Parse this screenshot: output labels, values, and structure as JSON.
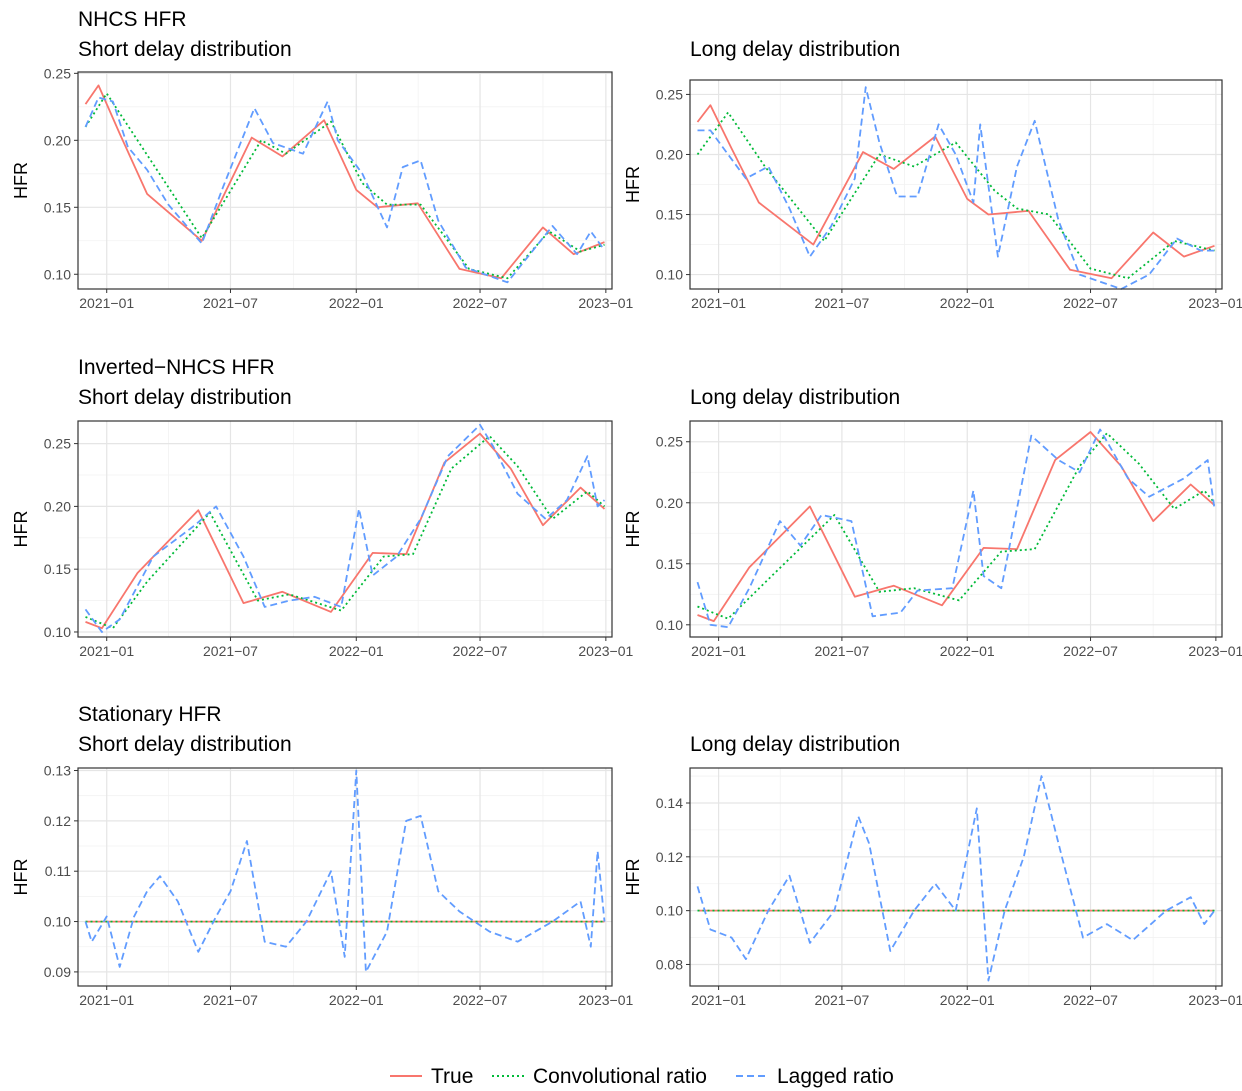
{
  "figure": {
    "row_titles": [
      "NHCS HFR",
      "Inverted−NHCS HFR",
      "Stationary HFR"
    ],
    "legend": {
      "items": [
        {
          "label": "True",
          "color": "#F8766D",
          "dash": "solid"
        },
        {
          "label": "Convolutional ratio",
          "color": "#00BA38",
          "dash": "dotted"
        },
        {
          "label": "Lagged ratio",
          "color": "#619CFF",
          "dash": "dashed"
        }
      ]
    }
  },
  "chart_data": [
    {
      "type": "line",
      "row_title": "NHCS HFR",
      "title": "Short delay distribution",
      "ylabel": "HFR",
      "xlim": [
        "2020-11-20",
        "2023-01-10"
      ],
      "ylim": [
        0.089,
        0.251
      ],
      "xticks": [
        "2021−01",
        "2021−07",
        "2022−01",
        "2022−07",
        "2023−01"
      ],
      "xtick_values": [
        "2021-01-01",
        "2021-07-01",
        "2022-01-01",
        "2022-07-01",
        "2023-01-01"
      ],
      "yticks": [
        "0.10",
        "0.15",
        "0.20",
        "0.25"
      ],
      "ytick_values": [
        0.1,
        0.15,
        0.2,
        0.25
      ],
      "series": [
        {
          "name": "True",
          "x": [
            "2020-12-01",
            "2020-12-20",
            "2021-01-20",
            "2021-03-01",
            "2021-05-20",
            "2021-08-01",
            "2021-09-15",
            "2021-11-15",
            "2022-01-01",
            "2022-02-01",
            "2022-04-01",
            "2022-06-01",
            "2022-08-01",
            "2022-10-01",
            "2022-11-15",
            "2022-12-30"
          ],
          "y": [
            0.227,
            0.241,
            0.205,
            0.16,
            0.125,
            0.202,
            0.188,
            0.215,
            0.163,
            0.15,
            0.153,
            0.104,
            0.097,
            0.135,
            0.115,
            0.124
          ]
        },
        {
          "name": "Convolutional ratio",
          "x": [
            "2020-12-01",
            "2021-01-01",
            "2021-02-15",
            "2021-05-20",
            "2021-08-15",
            "2021-09-20",
            "2021-11-25",
            "2022-01-10",
            "2022-02-15",
            "2022-04-05",
            "2022-06-15",
            "2022-08-10",
            "2022-10-10",
            "2022-11-25",
            "2022-12-30"
          ],
          "y": [
            0.21,
            0.235,
            0.2,
            0.127,
            0.2,
            0.19,
            0.214,
            0.168,
            0.152,
            0.152,
            0.104,
            0.097,
            0.132,
            0.117,
            0.122
          ]
        },
        {
          "name": "Lagged ratio",
          "x": [
            "2020-12-01",
            "2020-12-20",
            "2021-01-10",
            "2021-02-01",
            "2021-03-01",
            "2021-04-01",
            "2021-05-20",
            "2021-06-20",
            "2021-08-05",
            "2021-09-01",
            "2021-10-15",
            "2021-11-20",
            "2021-12-05",
            "2022-01-10",
            "2022-02-15",
            "2022-03-10",
            "2022-04-05",
            "2022-05-01",
            "2022-06-10",
            "2022-08-10",
            "2022-10-15",
            "2022-11-20",
            "2022-12-10",
            "2022-12-30"
          ],
          "y": [
            0.21,
            0.232,
            0.229,
            0.195,
            0.178,
            0.152,
            0.123,
            0.165,
            0.224,
            0.198,
            0.19,
            0.229,
            0.2,
            0.175,
            0.135,
            0.18,
            0.185,
            0.14,
            0.105,
            0.094,
            0.136,
            0.115,
            0.132,
            0.118
          ]
        }
      ]
    },
    {
      "type": "line",
      "row_title": "",
      "title": "Long delay distribution",
      "ylabel": "HFR",
      "xlim": [
        "2020-11-20",
        "2023-01-10"
      ],
      "ylim": [
        0.088,
        0.262
      ],
      "xticks": [
        "2021−01",
        "2021−07",
        "2022−01",
        "2022−07",
        "2023−01"
      ],
      "xtick_values": [
        "2021-01-01",
        "2021-07-01",
        "2022-01-01",
        "2022-07-01",
        "2023-01-01"
      ],
      "yticks": [
        "0.10",
        "0.15",
        "0.20",
        "0.25"
      ],
      "ytick_values": [
        0.1,
        0.15,
        0.2,
        0.25
      ],
      "series": [
        {
          "name": "True",
          "x": [
            "2020-12-01",
            "2020-12-20",
            "2021-01-20",
            "2021-03-01",
            "2021-05-20",
            "2021-08-01",
            "2021-09-15",
            "2021-11-15",
            "2022-01-01",
            "2022-02-01",
            "2022-04-01",
            "2022-06-01",
            "2022-08-01",
            "2022-10-01",
            "2022-11-15",
            "2022-12-30"
          ],
          "y": [
            0.227,
            0.241,
            0.205,
            0.16,
            0.125,
            0.202,
            0.188,
            0.215,
            0.163,
            0.15,
            0.153,
            0.104,
            0.097,
            0.135,
            0.115,
            0.124
          ]
        },
        {
          "name": "Convolutional ratio",
          "x": [
            "2020-12-01",
            "2021-01-15",
            "2021-03-10",
            "2021-06-05",
            "2021-08-25",
            "2021-10-15",
            "2021-12-15",
            "2022-02-10",
            "2022-03-15",
            "2022-05-01",
            "2022-07-01",
            "2022-08-25",
            "2022-11-01",
            "2022-12-30"
          ],
          "y": [
            0.2,
            0.235,
            0.19,
            0.128,
            0.2,
            0.19,
            0.21,
            0.17,
            0.155,
            0.15,
            0.105,
            0.097,
            0.128,
            0.12
          ]
        },
        {
          "name": "Lagged ratio",
          "x": [
            "2020-12-01",
            "2020-12-20",
            "2021-01-15",
            "2021-02-10",
            "2021-03-15",
            "2021-04-15",
            "2021-05-15",
            "2021-06-15",
            "2021-07-20",
            "2021-08-05",
            "2021-08-25",
            "2021-09-20",
            "2021-10-20",
            "2021-11-20",
            "2021-12-15",
            "2022-01-10",
            "2022-01-20",
            "2022-02-15",
            "2022-03-15",
            "2022-04-10",
            "2022-05-15",
            "2022-06-15",
            "2022-08-15",
            "2022-09-25",
            "2022-11-05",
            "2022-12-10",
            "2022-12-30"
          ],
          "y": [
            0.22,
            0.22,
            0.2,
            0.18,
            0.19,
            0.155,
            0.115,
            0.14,
            0.18,
            0.256,
            0.21,
            0.165,
            0.165,
            0.225,
            0.2,
            0.16,
            0.225,
            0.115,
            0.19,
            0.228,
            0.145,
            0.1,
            0.088,
            0.1,
            0.13,
            0.12,
            0.12
          ]
        }
      ]
    },
    {
      "type": "line",
      "row_title": "Inverted−NHCS HFR",
      "title": "Short delay distribution",
      "ylabel": "HFR",
      "xlim": [
        "2020-11-20",
        "2023-01-10"
      ],
      "ylim": [
        0.096,
        0.268
      ],
      "xticks": [
        "2021−01",
        "2021−07",
        "2022−01",
        "2022−07",
        "2023−01"
      ],
      "xtick_values": [
        "2021-01-01",
        "2021-07-01",
        "2022-01-01",
        "2022-07-01",
        "2023-01-01"
      ],
      "yticks": [
        "0.10",
        "0.15",
        "0.20",
        "0.25"
      ],
      "ytick_values": [
        0.1,
        0.15,
        0.2,
        0.25
      ],
      "series": [
        {
          "name": "True",
          "x": [
            "2020-12-01",
            "2020-12-25",
            "2021-02-15",
            "2021-05-15",
            "2021-07-20",
            "2021-09-15",
            "2021-11-25",
            "2022-01-25",
            "2022-03-15",
            "2022-05-10",
            "2022-07-01",
            "2022-08-15",
            "2022-10-01",
            "2022-11-25",
            "2022-12-30"
          ],
          "y": [
            0.108,
            0.103,
            0.147,
            0.197,
            0.123,
            0.132,
            0.116,
            0.163,
            0.162,
            0.235,
            0.258,
            0.23,
            0.185,
            0.215,
            0.198
          ]
        },
        {
          "name": "Convolutional ratio",
          "x": [
            "2020-12-01",
            "2021-01-10",
            "2021-03-01",
            "2021-06-01",
            "2021-08-10",
            "2021-09-25",
            "2021-12-10",
            "2022-02-10",
            "2022-03-25",
            "2022-05-20",
            "2022-07-15",
            "2022-08-25",
            "2022-10-15",
            "2022-12-05",
            "2022-12-30"
          ],
          "y": [
            0.112,
            0.103,
            0.14,
            0.195,
            0.125,
            0.13,
            0.117,
            0.16,
            0.162,
            0.23,
            0.256,
            0.232,
            0.19,
            0.212,
            0.2
          ]
        },
        {
          "name": "Lagged ratio",
          "x": [
            "2020-12-01",
            "2020-12-25",
            "2021-01-20",
            "2021-03-10",
            "2021-05-10",
            "2021-06-10",
            "2021-07-20",
            "2021-08-20",
            "2021-09-25",
            "2021-11-01",
            "2021-12-10",
            "2022-01-05",
            "2022-01-25",
            "2022-03-01",
            "2022-04-05",
            "2022-05-15",
            "2022-07-01",
            "2022-07-20",
            "2022-08-25",
            "2022-10-05",
            "2022-11-05",
            "2022-12-05",
            "2022-12-20",
            "2022-12-30"
          ],
          "y": [
            0.118,
            0.1,
            0.11,
            0.16,
            0.185,
            0.2,
            0.16,
            0.12,
            0.125,
            0.128,
            0.12,
            0.198,
            0.145,
            0.16,
            0.19,
            0.24,
            0.265,
            0.248,
            0.21,
            0.19,
            0.205,
            0.24,
            0.2,
            0.205
          ]
        }
      ]
    },
    {
      "type": "line",
      "row_title": "",
      "title": "Long delay distribution",
      "ylabel": "HFR",
      "xlim": [
        "2020-11-20",
        "2023-01-10"
      ],
      "ylim": [
        0.09,
        0.267
      ],
      "xticks": [
        "2021−01",
        "2021−07",
        "2022−01",
        "2022−07",
        "2023−01"
      ],
      "xtick_values": [
        "2021-01-01",
        "2021-07-01",
        "2022-01-01",
        "2022-07-01",
        "2023-01-01"
      ],
      "yticks": [
        "0.10",
        "0.15",
        "0.20",
        "0.25"
      ],
      "ytick_values": [
        0.1,
        0.15,
        0.2,
        0.25
      ],
      "series": [
        {
          "name": "True",
          "x": [
            "2020-12-01",
            "2020-12-25",
            "2021-02-15",
            "2021-05-15",
            "2021-07-20",
            "2021-09-15",
            "2021-11-25",
            "2022-01-25",
            "2022-03-15",
            "2022-05-10",
            "2022-07-01",
            "2022-08-15",
            "2022-10-01",
            "2022-11-25",
            "2022-12-30"
          ],
          "y": [
            0.108,
            0.103,
            0.147,
            0.197,
            0.123,
            0.132,
            0.116,
            0.163,
            0.162,
            0.235,
            0.258,
            0.23,
            0.185,
            0.215,
            0.198
          ]
        },
        {
          "name": "Convolutional ratio",
          "x": [
            "2020-12-01",
            "2021-01-15",
            "2021-03-20",
            "2021-06-20",
            "2021-08-25",
            "2021-10-15",
            "2021-12-20",
            "2022-02-20",
            "2022-04-10",
            "2022-06-15",
            "2022-07-25",
            "2022-09-10",
            "2022-11-01",
            "2022-12-15",
            "2022-12-30"
          ],
          "y": [
            0.115,
            0.105,
            0.14,
            0.19,
            0.127,
            0.13,
            0.12,
            0.16,
            0.162,
            0.23,
            0.257,
            0.232,
            0.195,
            0.21,
            0.2
          ]
        },
        {
          "name": "Lagged ratio",
          "x": [
            "2020-12-01",
            "2020-12-20",
            "2021-01-15",
            "2021-02-15",
            "2021-04-01",
            "2021-05-01",
            "2021-06-01",
            "2021-07-15",
            "2021-08-15",
            "2021-09-25",
            "2021-10-20",
            "2021-12-10",
            "2022-01-10",
            "2022-01-25",
            "2022-02-20",
            "2022-04-05",
            "2022-05-15",
            "2022-06-15",
            "2022-07-15",
            "2022-08-25",
            "2022-09-25",
            "2022-11-15",
            "2022-12-20",
            "2022-12-30"
          ],
          "y": [
            0.135,
            0.1,
            0.098,
            0.13,
            0.185,
            0.165,
            0.19,
            0.185,
            0.107,
            0.11,
            0.128,
            0.13,
            0.21,
            0.14,
            0.13,
            0.255,
            0.235,
            0.225,
            0.26,
            0.22,
            0.205,
            0.22,
            0.235,
            0.195
          ]
        }
      ]
    },
    {
      "type": "line",
      "row_title": "Stationary HFR",
      "title": "Short delay distribution",
      "ylabel": "HFR",
      "xlim": [
        "2020-11-20",
        "2023-01-10"
      ],
      "ylim": [
        0.0872,
        0.1305
      ],
      "xticks": [
        "2021−01",
        "2021−07",
        "2022−01",
        "2022−07",
        "2023−01"
      ],
      "xtick_values": [
        "2021-01-01",
        "2021-07-01",
        "2022-01-01",
        "2022-07-01",
        "2023-01-01"
      ],
      "yticks": [
        "0.09",
        "0.10",
        "0.11",
        "0.12",
        "0.13"
      ],
      "ytick_values": [
        0.09,
        0.1,
        0.11,
        0.12,
        0.13
      ],
      "series": [
        {
          "name": "True",
          "x": [
            "2020-12-01",
            "2022-12-30"
          ],
          "y": [
            0.1,
            0.1
          ]
        },
        {
          "name": "Convolutional ratio",
          "x": [
            "2020-12-01",
            "2022-12-30"
          ],
          "y": [
            0.1,
            0.1
          ]
        },
        {
          "name": "Lagged ratio",
          "x": [
            "2020-12-01",
            "2020-12-10",
            "2021-01-01",
            "2021-01-20",
            "2021-02-10",
            "2021-03-01",
            "2021-03-20",
            "2021-04-15",
            "2021-05-15",
            "2021-06-10",
            "2021-07-01",
            "2021-07-25",
            "2021-08-20",
            "2021-09-20",
            "2021-10-20",
            "2021-11-25",
            "2021-12-15",
            "2022-01-01",
            "2022-01-15",
            "2022-02-15",
            "2022-03-15",
            "2022-04-05",
            "2022-05-01",
            "2022-06-01",
            "2022-07-15",
            "2022-08-25",
            "2022-10-15",
            "2022-11-25",
            "2022-12-10",
            "2022-12-20",
            "2022-12-30"
          ],
          "y": [
            0.1,
            0.096,
            0.101,
            0.091,
            0.101,
            0.106,
            0.109,
            0.104,
            0.094,
            0.101,
            0.106,
            0.116,
            0.096,
            0.095,
            0.1,
            0.11,
            0.093,
            0.13,
            0.09,
            0.098,
            0.12,
            0.121,
            0.106,
            0.102,
            0.098,
            0.096,
            0.1,
            0.104,
            0.095,
            0.114,
            0.1
          ]
        }
      ]
    },
    {
      "type": "line",
      "row_title": "",
      "title": "Long delay distribution",
      "ylabel": "HFR",
      "xlim": [
        "2020-11-20",
        "2023-01-10"
      ],
      "ylim": [
        0.072,
        0.153
      ],
      "xticks": [
        "2021−01",
        "2021−07",
        "2022−01",
        "2022−07",
        "2023−01"
      ],
      "xtick_values": [
        "2021-01-01",
        "2021-07-01",
        "2022-01-01",
        "2022-07-01",
        "2023-01-01"
      ],
      "yticks": [
        "0.08",
        "0.10",
        "0.12",
        "0.14"
      ],
      "ytick_values": [
        0.08,
        0.1,
        0.12,
        0.14
      ],
      "series": [
        {
          "name": "True",
          "x": [
            "2020-12-01",
            "2022-12-30"
          ],
          "y": [
            0.1,
            0.1
          ]
        },
        {
          "name": "Convolutional ratio",
          "x": [
            "2020-12-01",
            "2022-12-30"
          ],
          "y": [
            0.1,
            0.1
          ]
        },
        {
          "name": "Lagged ratio",
          "x": [
            "2020-12-01",
            "2020-12-20",
            "2021-01-20",
            "2021-02-10",
            "2021-03-15",
            "2021-04-15",
            "2021-05-15",
            "2021-06-20",
            "2021-07-25",
            "2021-08-10",
            "2021-09-10",
            "2021-10-15",
            "2021-11-15",
            "2021-12-15",
            "2022-01-15",
            "2022-02-01",
            "2022-02-25",
            "2022-03-25",
            "2022-04-20",
            "2022-05-20",
            "2022-06-20",
            "2022-07-25",
            "2022-09-01",
            "2022-10-20",
            "2022-11-25",
            "2022-12-15",
            "2022-12-30"
          ],
          "y": [
            0.109,
            0.093,
            0.09,
            0.082,
            0.1,
            0.113,
            0.088,
            0.1,
            0.135,
            0.125,
            0.085,
            0.1,
            0.11,
            0.1,
            0.138,
            0.074,
            0.1,
            0.12,
            0.15,
            0.12,
            0.09,
            0.095,
            0.089,
            0.1,
            0.105,
            0.095,
            0.1
          ]
        }
      ]
    }
  ]
}
